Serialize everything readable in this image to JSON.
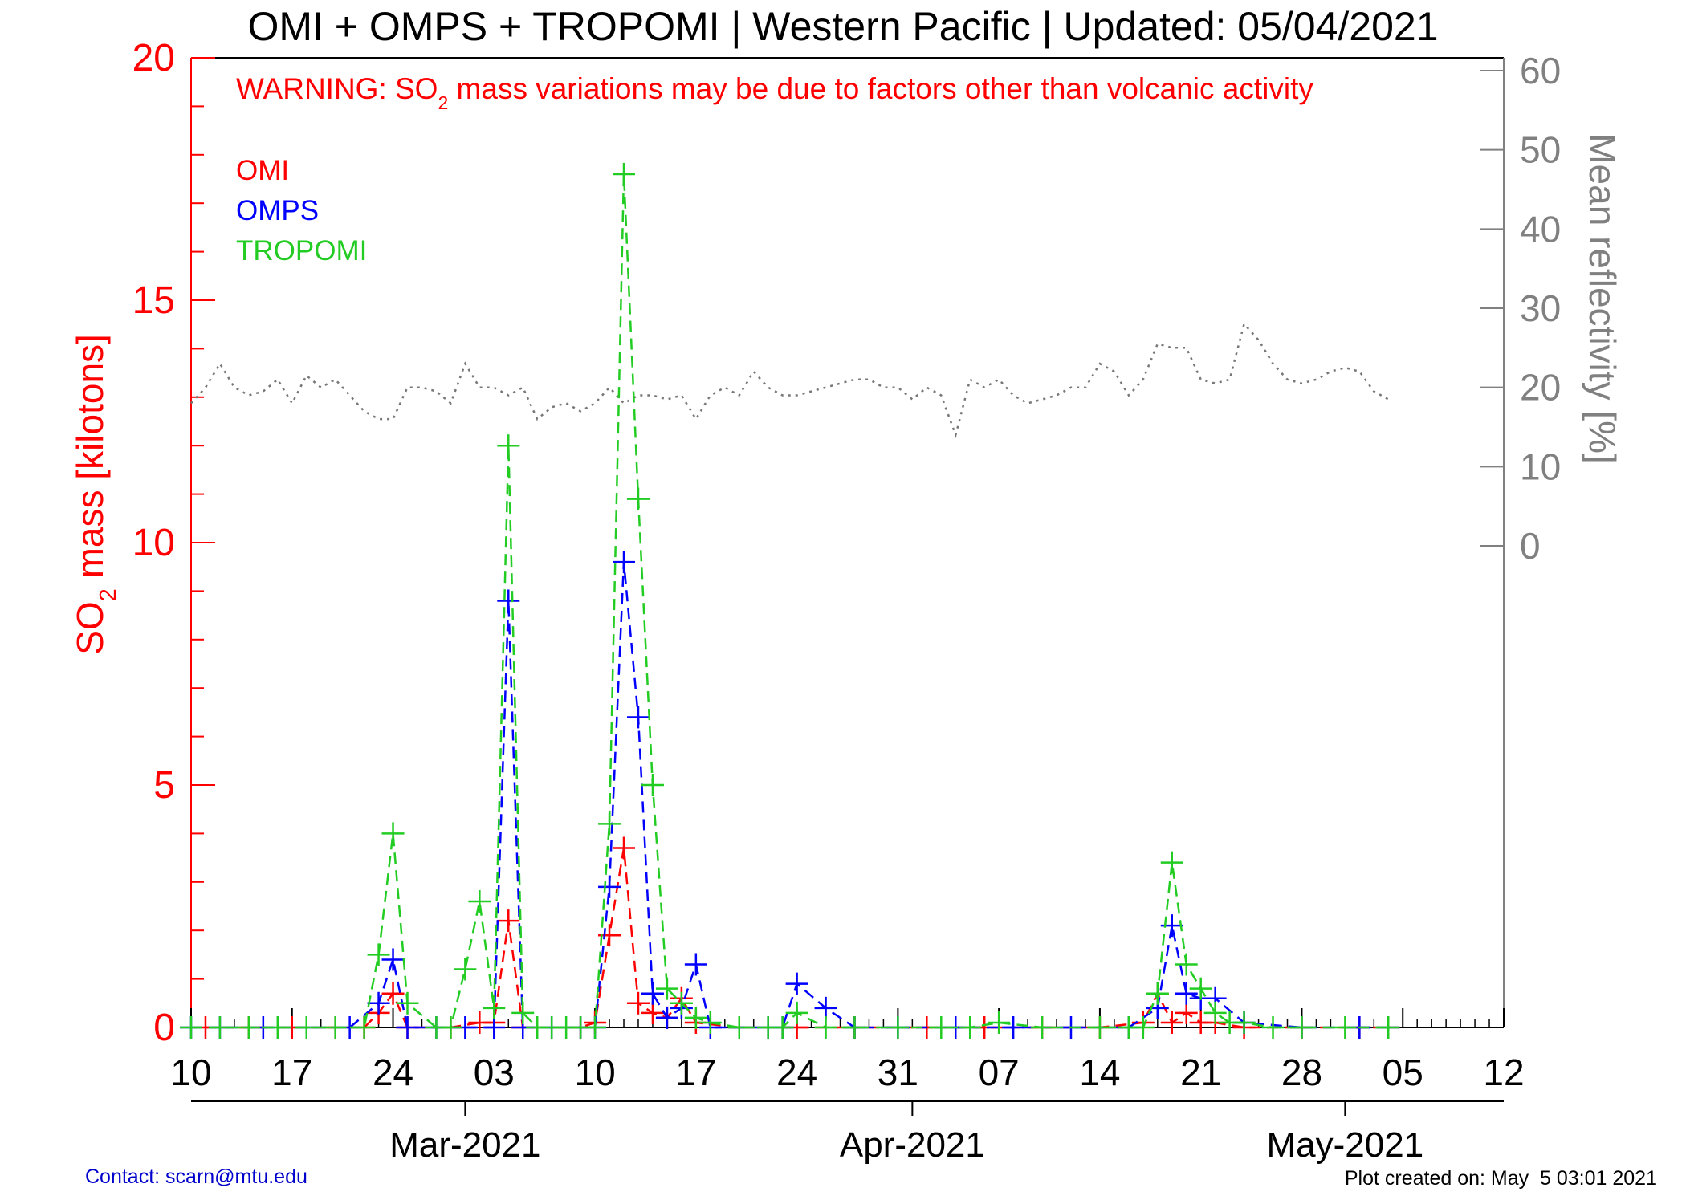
{
  "chart_data": {
    "type": "line",
    "title": "OMI + OMPS + TROPOMI | Western Pacific | Updated: 05/04/2021",
    "warning": {
      "prefix": "WARNING: SO",
      "subscript": "2",
      "suffix": " mass variations may be due to factors other than volcanic activity"
    },
    "ylabel": {
      "prefix": "SO",
      "subscript": "2",
      "suffix": " mass [kilotons]"
    },
    "y2label": "Mean reflectivity [%]",
    "ylim": [
      0,
      20
    ],
    "y_ticks": [
      0,
      5,
      10,
      15,
      20
    ],
    "y_minor_step": 1,
    "y2_ticks": [
      0,
      10,
      20,
      30,
      40,
      50,
      60
    ],
    "y2_range": [
      0,
      60
    ],
    "x_start": "2021-02-10",
    "x_end": "2021-05-12",
    "x_ticks": [
      "10",
      "17",
      "24",
      "03",
      "10",
      "17",
      "24",
      "31",
      "07",
      "14",
      "21",
      "28",
      "05",
      "12"
    ],
    "x_tick_dates": [
      "2021-02-10",
      "2021-02-17",
      "2021-02-24",
      "2021-03-03",
      "2021-03-10",
      "2021-03-17",
      "2021-03-24",
      "2021-03-31",
      "2021-04-07",
      "2021-04-14",
      "2021-04-21",
      "2021-04-28",
      "2021-05-05",
      "2021-05-12"
    ],
    "months": [
      {
        "label": "Mar-2021",
        "date": "2021-03-01"
      },
      {
        "label": "Apr-2021",
        "date": "2021-04-01"
      },
      {
        "label": "May-2021",
        "date": "2021-05-01"
      }
    ],
    "legend": [
      "OMI",
      "OMPS",
      "TROPOMI"
    ],
    "colors": {
      "OMI": "#ff0000",
      "OMPS": "#0000ff",
      "TROPOMI": "#22cc22",
      "reflectivity": "#777777",
      "left_axis": "#ff0000",
      "right_axis": "#808080"
    },
    "series": [
      {
        "name": "OMI",
        "x": [
          "2021-02-11",
          "2021-02-14",
          "2021-02-17",
          "2021-02-20",
          "2021-02-22",
          "2021-02-23",
          "2021-02-24",
          "2021-02-25",
          "2021-02-28",
          "2021-03-02",
          "2021-03-03",
          "2021-03-04",
          "2021-03-05",
          "2021-03-09",
          "2021-03-10",
          "2021-03-11",
          "2021-03-12",
          "2021-03-13",
          "2021-03-14",
          "2021-03-15",
          "2021-03-16",
          "2021-03-17",
          "2021-03-20",
          "2021-03-24",
          "2021-03-28",
          "2021-04-02",
          "2021-04-06",
          "2021-04-10",
          "2021-04-14",
          "2021-04-17",
          "2021-04-18",
          "2021-04-19",
          "2021-04-20",
          "2021-04-21",
          "2021-04-22",
          "2021-04-24",
          "2021-04-28",
          "2021-05-02",
          "2021-05-04"
        ],
        "values": [
          0,
          0,
          0,
          0,
          0,
          0.3,
          0.7,
          0,
          0,
          0.1,
          0.1,
          2.2,
          0,
          0,
          0.1,
          1.9,
          3.7,
          0.5,
          0.3,
          0.2,
          0.6,
          0.1,
          0,
          0,
          0,
          0,
          0,
          0,
          0,
          0.1,
          0.7,
          0.1,
          0.3,
          0.1,
          0.1,
          0,
          0,
          0,
          0
        ]
      },
      {
        "name": "OMPS",
        "x": [
          "2021-02-10",
          "2021-02-12",
          "2021-02-15",
          "2021-02-18",
          "2021-02-21",
          "2021-02-23",
          "2021-02-24",
          "2021-02-25",
          "2021-02-27",
          "2021-03-01",
          "2021-03-03",
          "2021-03-04",
          "2021-03-05",
          "2021-03-07",
          "2021-03-09",
          "2021-03-10",
          "2021-03-11",
          "2021-03-12",
          "2021-03-13",
          "2021-03-14",
          "2021-03-15",
          "2021-03-16",
          "2021-03-17",
          "2021-03-18",
          "2021-03-20",
          "2021-03-22",
          "2021-03-23",
          "2021-03-24",
          "2021-03-26",
          "2021-03-28",
          "2021-03-31",
          "2021-04-04",
          "2021-04-08",
          "2021-04-12",
          "2021-04-16",
          "2021-04-18",
          "2021-04-19",
          "2021-04-20",
          "2021-04-21",
          "2021-04-22",
          "2021-04-24",
          "2021-04-28",
          "2021-05-02",
          "2021-05-04"
        ],
        "values": [
          0,
          0,
          0,
          0,
          0,
          0.5,
          1.4,
          0,
          0,
          0,
          0,
          8.8,
          0,
          0,
          0,
          0,
          2.9,
          9.6,
          6.4,
          0.7,
          0.2,
          0.4,
          1.3,
          0,
          0,
          0,
          0,
          0.9,
          0.4,
          0,
          0,
          0,
          0,
          0,
          0,
          0.4,
          2.1,
          0.7,
          0.6,
          0.6,
          0.1,
          0,
          0,
          0
        ]
      },
      {
        "name": "TROPOMI",
        "x": [
          "2021-02-10",
          "2021-02-12",
          "2021-02-14",
          "2021-02-16",
          "2021-02-18",
          "2021-02-20",
          "2021-02-22",
          "2021-02-23",
          "2021-02-24",
          "2021-02-25",
          "2021-02-27",
          "2021-02-28",
          "2021-03-01",
          "2021-03-02",
          "2021-03-03",
          "2021-03-04",
          "2021-03-05",
          "2021-03-06",
          "2021-03-07",
          "2021-03-08",
          "2021-03-09",
          "2021-03-10",
          "2021-03-11",
          "2021-03-12",
          "2021-03-13",
          "2021-03-14",
          "2021-03-15",
          "2021-03-16",
          "2021-03-17",
          "2021-03-18",
          "2021-03-20",
          "2021-03-22",
          "2021-03-23",
          "2021-03-24",
          "2021-03-26",
          "2021-03-28",
          "2021-03-31",
          "2021-04-03",
          "2021-04-05",
          "2021-04-07",
          "2021-04-10",
          "2021-04-14",
          "2021-04-16",
          "2021-04-17",
          "2021-04-18",
          "2021-04-19",
          "2021-04-20",
          "2021-04-21",
          "2021-04-22",
          "2021-04-23",
          "2021-04-24",
          "2021-04-26",
          "2021-04-28",
          "2021-05-01",
          "2021-05-04"
        ],
        "values": [
          0,
          0,
          0,
          0,
          0,
          0,
          0,
          1.5,
          4.0,
          0.5,
          0,
          0,
          1.2,
          2.6,
          0.4,
          12.0,
          0.3,
          0,
          0,
          0,
          0,
          0,
          4.2,
          17.6,
          10.9,
          5.0,
          0.8,
          0.5,
          0.2,
          0.1,
          0,
          0,
          0,
          0.3,
          0,
          0,
          0,
          0,
          0,
          0.1,
          0,
          0,
          0,
          0,
          0.7,
          3.4,
          1.3,
          0.8,
          0.3,
          0.1,
          0.1,
          0,
          0,
          0,
          0
        ]
      },
      {
        "name": "reflectivity",
        "axis": "right",
        "x": [
          "2021-02-10",
          "2021-02-11",
          "2021-02-12",
          "2021-02-13",
          "2021-02-14",
          "2021-02-15",
          "2021-02-16",
          "2021-02-17",
          "2021-02-18",
          "2021-02-19",
          "2021-02-20",
          "2021-02-21",
          "2021-02-22",
          "2021-02-23",
          "2021-02-24",
          "2021-02-25",
          "2021-02-26",
          "2021-02-27",
          "2021-02-28",
          "2021-03-01",
          "2021-03-02",
          "2021-03-03",
          "2021-03-04",
          "2021-03-05",
          "2021-03-06",
          "2021-03-07",
          "2021-03-08",
          "2021-03-09",
          "2021-03-10",
          "2021-03-11",
          "2021-03-12",
          "2021-03-13",
          "2021-03-14",
          "2021-03-15",
          "2021-03-16",
          "2021-03-17",
          "2021-03-18",
          "2021-03-19",
          "2021-03-20",
          "2021-03-21",
          "2021-03-22",
          "2021-03-23",
          "2021-03-24",
          "2021-03-25",
          "2021-03-26",
          "2021-03-27",
          "2021-03-28",
          "2021-03-29",
          "2021-03-30",
          "2021-03-31",
          "2021-04-01",
          "2021-04-02",
          "2021-04-03",
          "2021-04-04",
          "2021-04-05",
          "2021-04-06",
          "2021-04-07",
          "2021-04-08",
          "2021-04-09",
          "2021-04-10",
          "2021-04-11",
          "2021-04-12",
          "2021-04-13",
          "2021-04-14",
          "2021-04-15",
          "2021-04-16",
          "2021-04-17",
          "2021-04-18",
          "2021-04-19",
          "2021-04-20",
          "2021-04-21",
          "2021-04-22",
          "2021-04-23",
          "2021-04-24",
          "2021-04-25",
          "2021-04-26",
          "2021-04-27",
          "2021-04-28",
          "2021-04-29",
          "2021-04-30",
          "2021-05-01",
          "2021-05-02",
          "2021-05-03",
          "2021-05-04"
        ],
        "values": [
          18,
          20,
          23,
          20,
          19,
          19.5,
          21,
          18,
          21.5,
          20,
          21,
          19,
          17,
          16,
          16,
          20,
          20,
          19.5,
          18,
          23,
          20,
          20,
          19,
          20,
          16,
          17.5,
          18,
          17,
          18,
          20,
          18,
          19,
          19,
          18.5,
          19,
          16,
          19,
          20,
          19,
          22,
          20,
          19,
          19,
          19.5,
          20,
          20.5,
          21,
          21,
          20,
          20,
          18.5,
          20,
          19,
          14,
          21,
          20,
          21,
          19,
          18,
          18.5,
          19,
          20,
          20,
          23,
          22,
          19,
          21,
          25.5,
          25,
          25,
          21,
          20.5,
          21,
          28,
          26,
          23,
          21,
          20.5,
          21,
          22,
          22.5,
          22,
          19.5,
          18.5
        ]
      }
    ],
    "footer_contact": "Contact: scarn@mtu.edu",
    "footer_created": "Plot created on: May  5 03:01 2021"
  }
}
